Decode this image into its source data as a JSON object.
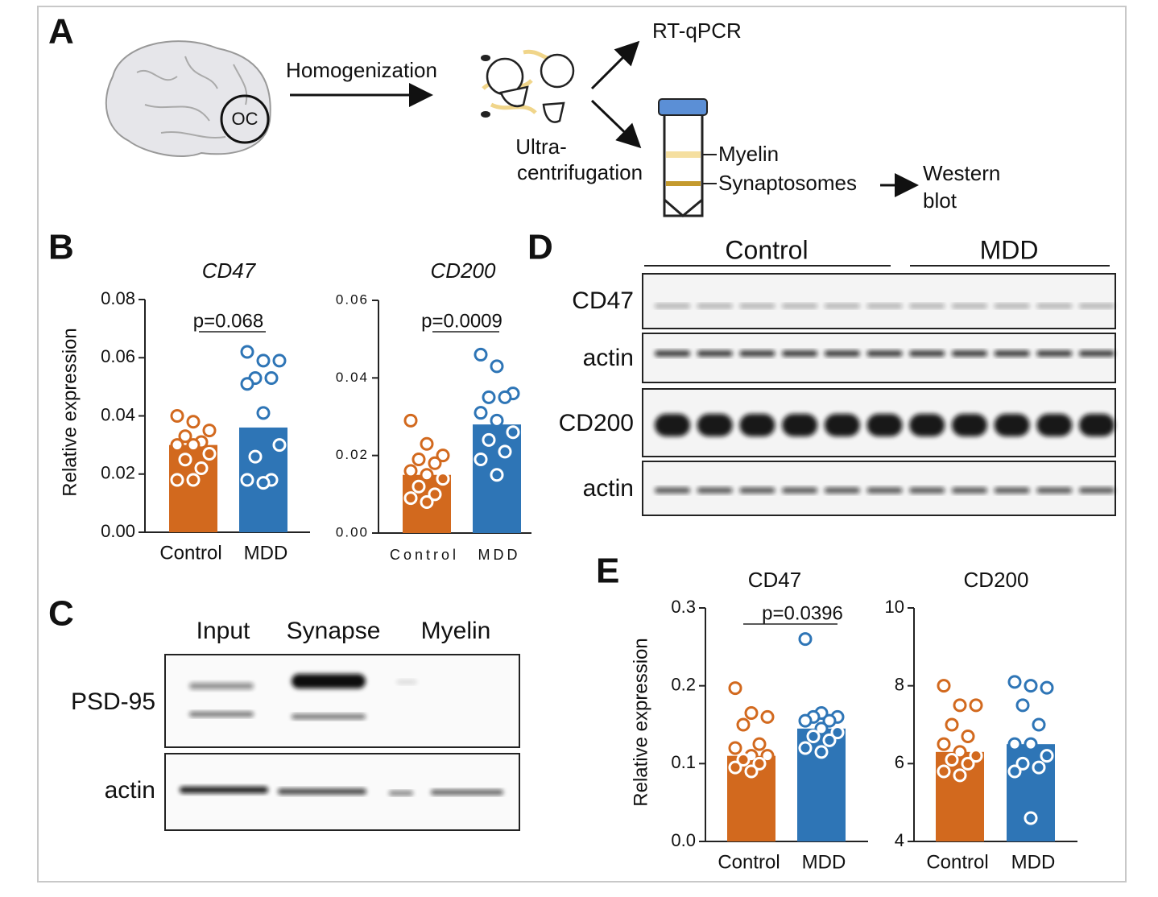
{
  "panel_labels": [
    "A",
    "B",
    "C",
    "D",
    "E"
  ],
  "diagram": {
    "oc": "OC",
    "step1": "Homogenization",
    "step2_line1": "Ultra-",
    "step2_line2": "centrifugation",
    "out1": "RT-qPCR",
    "layer1": "Myelin",
    "layer2": "Synaptosomes",
    "out2_line1": "Western",
    "out2_line2": "blot"
  },
  "blot_c": {
    "lanes": [
      "Input",
      "Synapse",
      "Myelin"
    ],
    "rows": [
      "PSD-95",
      "actin"
    ]
  },
  "blot_d": {
    "groups": [
      "Control",
      "MDD"
    ],
    "rows": [
      "CD47",
      "actin",
      "CD200",
      "actin"
    ]
  },
  "chart_data": [
    {
      "type": "bar",
      "title": "CD47",
      "ylabel": "Relative expression",
      "categories": [
        "Control",
        "MDD"
      ],
      "values": [
        0.03,
        0.036
      ],
      "colors": [
        "#d2691e",
        "#2e75b6"
      ],
      "points": [
        [
          0.04,
          0.038,
          0.035,
          0.033,
          0.031,
          0.03,
          0.03,
          0.027,
          0.025,
          0.022,
          0.018,
          0.018
        ],
        [
          0.062,
          0.059,
          0.059,
          0.053,
          0.053,
          0.051,
          0.041,
          0.03,
          0.026,
          0.018,
          0.018,
          0.017
        ]
      ],
      "annotation": "p=0.068",
      "ylim": [
        0,
        0.08
      ],
      "yticks": [
        {
          "value": 0,
          "label": "0.00"
        },
        0.02,
        0.04,
        0.06,
        0.08
      ]
    },
    {
      "type": "bar",
      "title": "CD200",
      "categories": [
        "Control",
        "MDD"
      ],
      "values": [
        0.015,
        0.028
      ],
      "colors": [
        "#d2691e",
        "#2e75b6"
      ],
      "points": [
        [
          0.029,
          0.023,
          0.02,
          0.019,
          0.018,
          0.016,
          0.015,
          0.014,
          0.012,
          0.01,
          0.009,
          0.008
        ],
        [
          0.046,
          0.043,
          0.036,
          0.035,
          0.035,
          0.031,
          0.029,
          0.026,
          0.024,
          0.021,
          0.019,
          0.015
        ]
      ],
      "annotation": "p=0.0009",
      "ylim": [
        0,
        0.06
      ],
      "yticks": [
        {
          "value": 0,
          "label": "0.00"
        },
        0.02,
        0.04,
        0.06
      ]
    },
    {
      "type": "bar",
      "title": "CD47",
      "ylabel": "Relative expression",
      "categories": [
        "Control",
        "MDD"
      ],
      "values": [
        0.11,
        0.145
      ],
      "colors": [
        "#d2691e",
        "#2e75b6"
      ],
      "points": [
        [
          0.197,
          0.165,
          0.16,
          0.15,
          0.125,
          0.12,
          0.11,
          0.11,
          0.105,
          0.1,
          0.095,
          0.09
        ],
        [
          0.26,
          0.165,
          0.16,
          0.16,
          0.155,
          0.155,
          0.145,
          0.14,
          0.135,
          0.13,
          0.12,
          0.115
        ]
      ],
      "annotation": "p=0.0396",
      "ylim": [
        0,
        0.3
      ],
      "yticks": [
        {
          "value": 0,
          "label": "0.0"
        },
        0.1,
        0.2,
        0.3
      ]
    },
    {
      "type": "bar",
      "title": "CD200",
      "categories": [
        "Control",
        "MDD"
      ],
      "values": [
        6.3,
        6.5
      ],
      "colors": [
        "#d2691e",
        "#2e75b6"
      ],
      "points": [
        [
          8.0,
          7.5,
          7.5,
          7.0,
          6.7,
          6.5,
          6.3,
          6.2,
          6.1,
          6.0,
          5.8,
          5.7
        ],
        [
          8.1,
          8.0,
          7.95,
          7.5,
          7.0,
          6.5,
          6.5,
          6.2,
          6.0,
          5.9,
          5.8,
          4.6
        ]
      ],
      "ylim": [
        4,
        10
      ],
      "yticks": [
        4,
        6,
        8,
        10
      ]
    }
  ]
}
